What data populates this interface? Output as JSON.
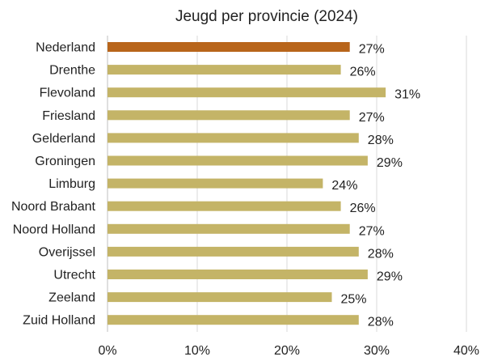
{
  "colors": {
    "highlight": "#B8651B",
    "bar": "#C4B467"
  },
  "chart_data": {
    "type": "bar",
    "orientation": "horizontal",
    "title": "Jeugd per provincie (2024)",
    "xlabel": "",
    "ylabel": "",
    "categories": [
      "Nederland",
      "Drenthe",
      "Flevoland",
      "Friesland",
      "Gelderland",
      "Groningen",
      "Limburg",
      "Noord Brabant",
      "Noord Holland",
      "Overijssel",
      "Utrecht",
      "Zeeland",
      "Zuid Holland"
    ],
    "values": [
      27,
      26,
      31,
      27,
      28,
      29,
      24,
      26,
      27,
      28,
      29,
      25,
      28
    ],
    "value_labels": [
      "27%",
      "26%",
      "31%",
      "27%",
      "28%",
      "29%",
      "24%",
      "26%",
      "27%",
      "28%",
      "29%",
      "25%",
      "28%"
    ],
    "highlight_category": "Nederland",
    "xlim": [
      0,
      40
    ],
    "xticks": [
      0,
      10,
      20,
      30,
      40
    ],
    "xtick_labels": [
      "0%",
      "10%",
      "20%",
      "30%",
      "40%"
    ],
    "grid": true,
    "legend": "none"
  }
}
